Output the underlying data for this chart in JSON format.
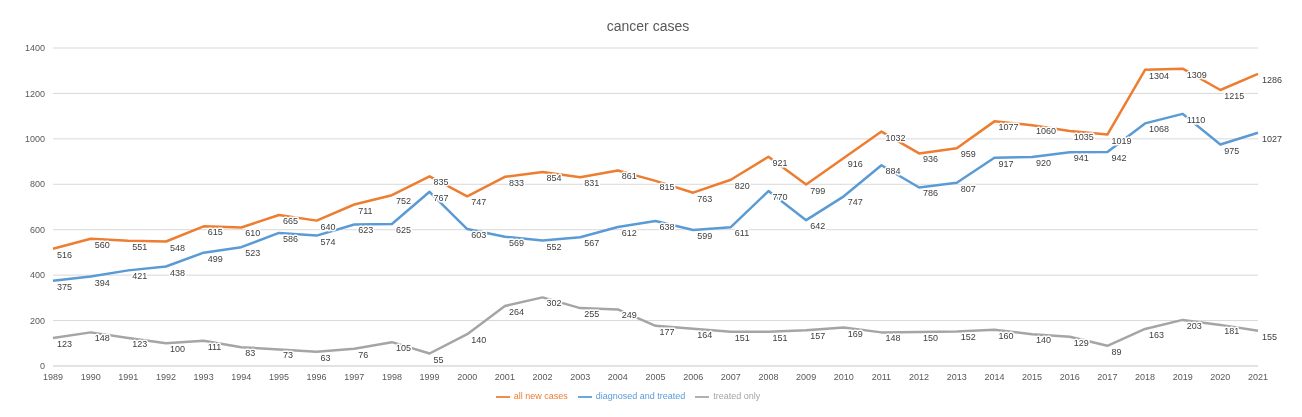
{
  "chart_data": {
    "type": "line",
    "title": "cancer cases",
    "categories": [
      "1989",
      "1990",
      "1991",
      "1992",
      "1993",
      "1994",
      "1995",
      "1996",
      "1997",
      "1998",
      "1999",
      "2000",
      "2001",
      "2002",
      "2003",
      "2004",
      "2005",
      "2006",
      "2007",
      "2008",
      "2009",
      "2010",
      "2011",
      "2012",
      "2013",
      "2014",
      "2015",
      "2016",
      "2017",
      "2018",
      "2019",
      "2020",
      "2021"
    ],
    "series": [
      {
        "name": "diagnosed and treated",
        "color": "#5b9bd5",
        "values": [
          375,
          394,
          421,
          438,
          499,
          523,
          586,
          574,
          623,
          625,
          767,
          603,
          569,
          552,
          567,
          612,
          638,
          599,
          611,
          770,
          642,
          747,
          884,
          786,
          807,
          917,
          920,
          941,
          942,
          1068,
          1110,
          975,
          1027
        ]
      },
      {
        "name": "all new cases",
        "color": "#ed7d31",
        "values": [
          516,
          560,
          551,
          548,
          615,
          610,
          665,
          640,
          711,
          752,
          835,
          747,
          833,
          854,
          831,
          861,
          815,
          763,
          820,
          921,
          799,
          916,
          1032,
          936,
          959,
          1077,
          1060,
          1035,
          1019,
          1304,
          1309,
          1215,
          1286
        ]
      },
      {
        "name": "treated only",
        "color": "#a5a5a5",
        "values": [
          123,
          148,
          123,
          100,
          111,
          83,
          73,
          63,
          76,
          105,
          55,
          140,
          264,
          302,
          255,
          249,
          177,
          164,
          151,
          151,
          157,
          169,
          148,
          150,
          152,
          160,
          140,
          129,
          89,
          163,
          203,
          181,
          155
        ]
      }
    ],
    "ylim": [
      0,
      1400
    ],
    "yticks": [
      0,
      200,
      400,
      600,
      800,
      1000,
      1200,
      1400
    ],
    "grid": "y",
    "legend": "bottom",
    "data_labels": true,
    "marker": "none",
    "line_style": "solid"
  }
}
